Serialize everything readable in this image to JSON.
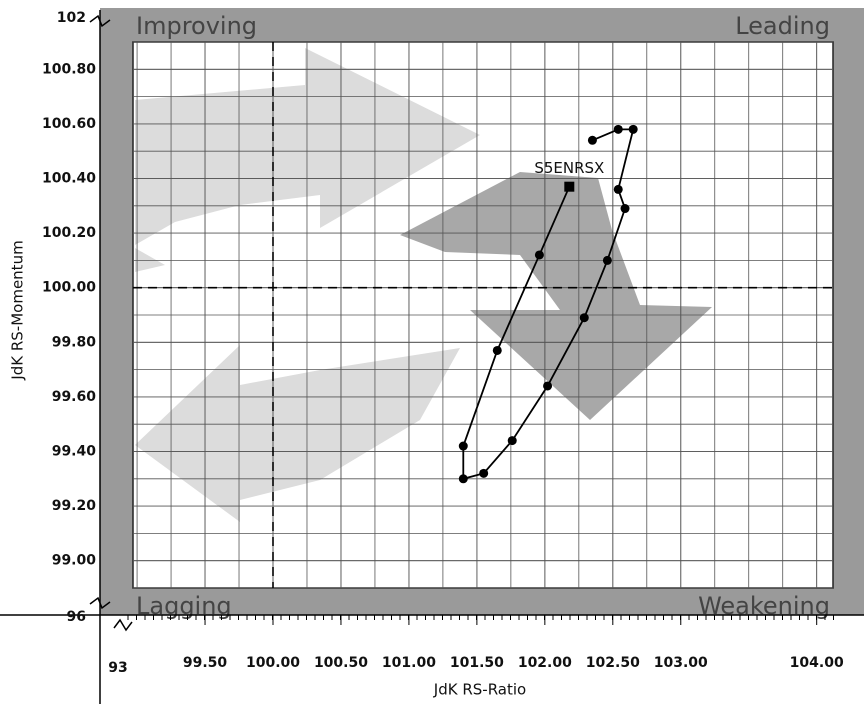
{
  "chart_data": {
    "type": "rrg",
    "xlabel": "JdK RS-Ratio",
    "ylabel": "JdK RS-Momentum",
    "quadrants": {
      "top_left": "Improving",
      "top_right": "Leading",
      "bottom_left": "Lagging",
      "bottom_right": "Weakening"
    },
    "axis_breaks": {
      "y_top": "102",
      "y_bottom": "96",
      "x_left": "93"
    },
    "xlim": [
      98.97,
      104.12
    ],
    "ylim": [
      98.9,
      100.9
    ],
    "xticks": [
      {
        "value": 99.5,
        "label": "99.50"
      },
      {
        "value": 100,
        "label": "100.00"
      },
      {
        "value": 100.5,
        "label": "100.50"
      },
      {
        "value": 101,
        "label": "101.00"
      },
      {
        "value": 101.5,
        "label": "101.50"
      },
      {
        "value": 102,
        "label": "102.00"
      },
      {
        "value": 102.5,
        "label": "102.50"
      },
      {
        "value": 103,
        "label": "103.00"
      },
      {
        "value": 104,
        "label": "104.00"
      }
    ],
    "yticks": [
      {
        "value": 99,
        "label": "99.00"
      },
      {
        "value": 99.2,
        "label": "99.20"
      },
      {
        "value": 99.4,
        "label": "99.40"
      },
      {
        "value": 99.6,
        "label": "99.60"
      },
      {
        "value": 99.8,
        "label": "99.80"
      },
      {
        "value": 100,
        "label": "100.00"
      },
      {
        "value": 100.2,
        "label": "100.20"
      },
      {
        "value": 100.4,
        "label": "100.40"
      },
      {
        "value": 100.6,
        "label": "100.60"
      },
      {
        "value": 100.8,
        "label": "100.80"
      }
    ],
    "grid": true,
    "minor_grid": true,
    "crosshair": {
      "x": 100,
      "y": 100
    },
    "series": [
      {
        "name": "S5ENRSX",
        "color": "#000000",
        "x": [
          102.35,
          102.54,
          102.65,
          102.54,
          102.59,
          102.46,
          102.29,
          102.02,
          101.76,
          101.55,
          101.4,
          101.4,
          101.65,
          101.96,
          102.18
        ],
        "values": [
          100.54,
          100.58,
          100.58,
          100.36,
          100.29,
          100.1,
          99.89,
          99.64,
          99.44,
          99.32,
          99.3,
          99.42,
          99.77,
          100.12,
          100.37
        ]
      }
    ]
  }
}
